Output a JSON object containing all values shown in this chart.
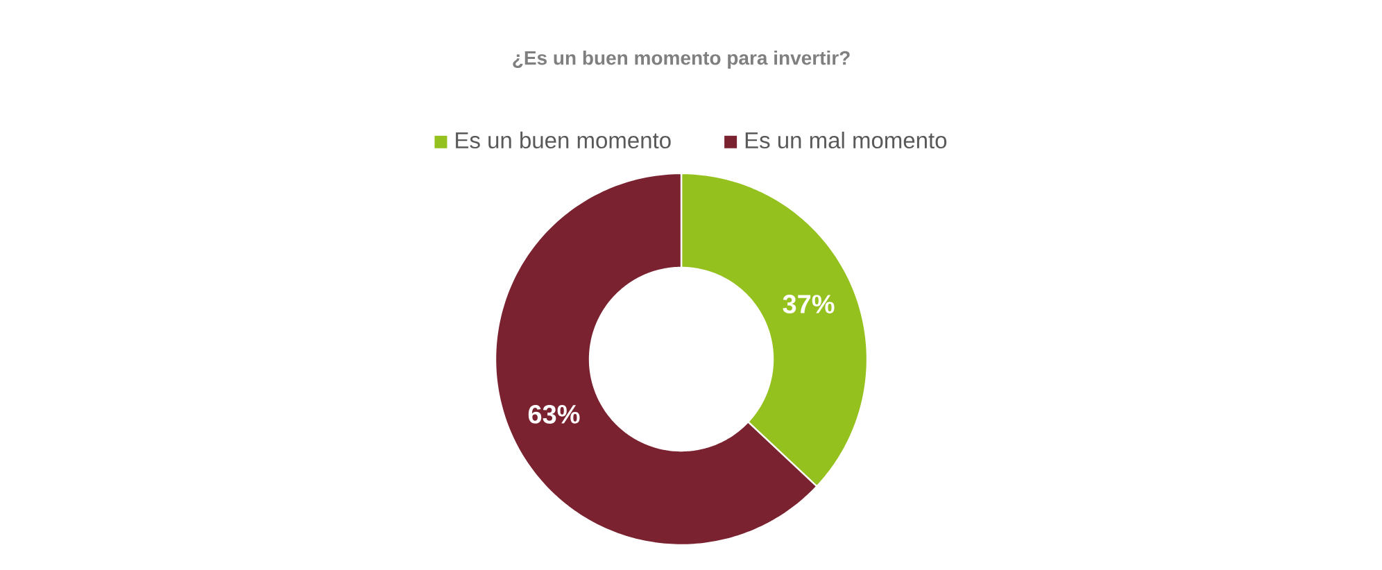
{
  "chart_data": {
    "type": "donut",
    "title": "¿Es un buen momento para invertir?",
    "categories": [
      "Es un buen momento",
      "Es un mal momento"
    ],
    "values": [
      37,
      63
    ],
    "colors": [
      "#95c11f",
      "#7a222f"
    ],
    "value_labels": [
      "37%",
      "63%"
    ],
    "legend": "top"
  }
}
